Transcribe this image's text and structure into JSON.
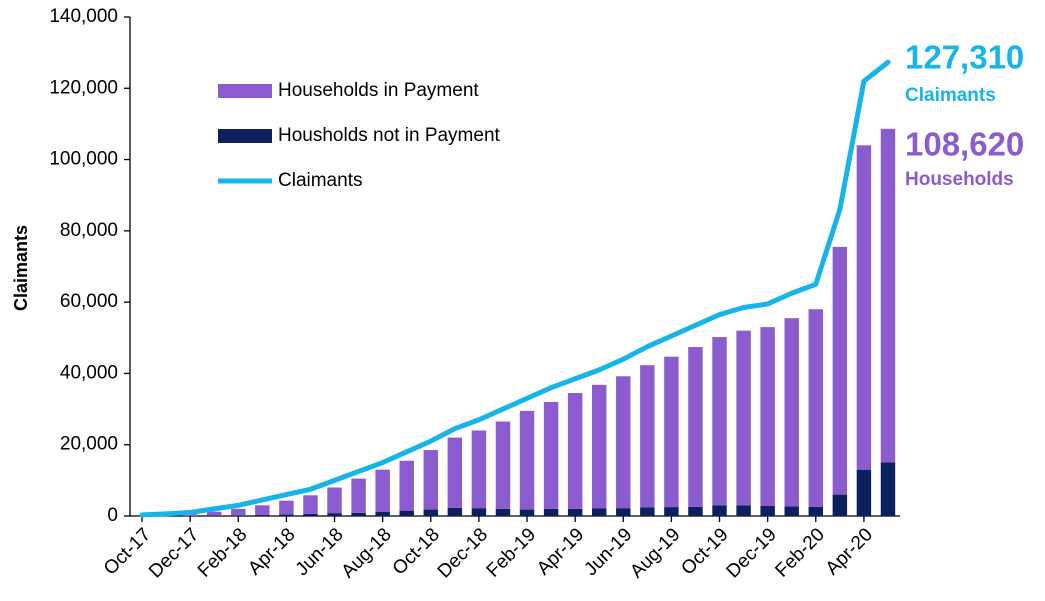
{
  "chart_data": {
    "type": "stacked_bar_line",
    "ylabel": "Claimants",
    "categories": [
      "Oct-17",
      null,
      "Dec-17",
      null,
      "Feb-18",
      null,
      "Apr-18",
      null,
      "Jun-18",
      null,
      "Aug-18",
      null,
      "Oct-18",
      null,
      "Dec-18",
      null,
      "Feb-19",
      null,
      "Apr-19",
      null,
      "Jun-19",
      null,
      "Aug-19",
      null,
      "Oct-19",
      null,
      "Dec-19",
      null,
      "Feb-20",
      null,
      "Apr-20",
      null
    ],
    "series": [
      {
        "name": "Households in Payment",
        "color": "#8a5cd0",
        "kind": "bar",
        "values": [
          0,
          200,
          500,
          1100,
          1800,
          2700,
          3900,
          5200,
          7200,
          9600,
          11800,
          14000,
          16700,
          19700,
          21800,
          24500,
          27700,
          30000,
          32500,
          34700,
          37000,
          39900,
          42200,
          44800,
          47200,
          49000,
          50200,
          52800,
          55400,
          69500,
          91000,
          93620
        ]
      },
      {
        "name": "Housholds not in Payment",
        "color": "#0d1f5c",
        "kind": "bar",
        "values": [
          0,
          0,
          0,
          100,
          200,
          300,
          400,
          600,
          800,
          900,
          1200,
          1500,
          1800,
          2300,
          2200,
          2000,
          1800,
          2000,
          2000,
          2100,
          2200,
          2400,
          2500,
          2600,
          3000,
          3000,
          2800,
          2700,
          2600,
          6000,
          13000,
          15000
        ]
      },
      {
        "name": "Claimants",
        "color": "#16b4e8",
        "kind": "line",
        "values": [
          300,
          600,
          1000,
          2000,
          3000,
          4500,
          6000,
          7500,
          10000,
          12500,
          15000,
          18000,
          21000,
          24500,
          27000,
          30000,
          33000,
          36000,
          38500,
          41000,
          44000,
          47500,
          50500,
          53500,
          56500,
          58500,
          59500,
          62500,
          65000,
          86000,
          122000,
          127310
        ]
      }
    ],
    "ylim": [
      0,
      140000
    ],
    "yticks": [
      0,
      {
        "value": 20000,
        "label": "20,000"
      },
      {
        "value": 40000,
        "label": "40,000"
      },
      {
        "value": 60000,
        "label": "60,000"
      },
      {
        "value": 80000,
        "label": "80,000"
      },
      {
        "value": 100000,
        "label": "100,000"
      },
      {
        "value": 120000,
        "label": "120,000"
      },
      {
        "value": 140000,
        "label": "140,000"
      }
    ],
    "legend": "upper left",
    "annotations": [
      {
        "text": "127,310",
        "color": "#16b4e8"
      },
      {
        "text": "Claimants",
        "color": "#16b4e8"
      },
      {
        "text": "108,620",
        "color": "#8a5cd0"
      },
      {
        "text": "Households",
        "color": "#8a5cd0"
      }
    ]
  }
}
